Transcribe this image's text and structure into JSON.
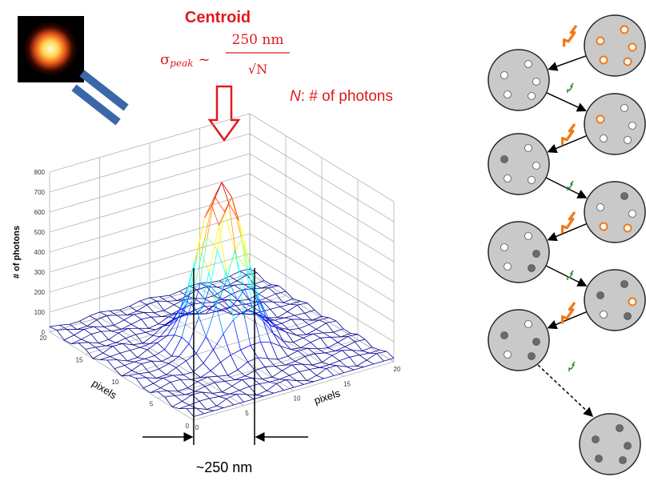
{
  "title": "Centroid",
  "formula": {
    "sigma": "σ",
    "subscript": "peak",
    "approx": "~",
    "numerator": "250 nm",
    "denominator": "√N"
  },
  "legend": {
    "variable": "N",
    "text": ": # of photons"
  },
  "plot": {
    "z_label": "# of photons",
    "z_ticks": [
      0,
      100,
      200,
      300,
      400,
      500,
      600,
      700,
      800
    ],
    "x_label": "pixels",
    "x_ticks": [
      0,
      5,
      10,
      15,
      20
    ],
    "y_label": "pixels",
    "y_ticks": [
      0,
      5,
      10,
      15,
      20
    ]
  },
  "width_label": "~250 nm"
}
